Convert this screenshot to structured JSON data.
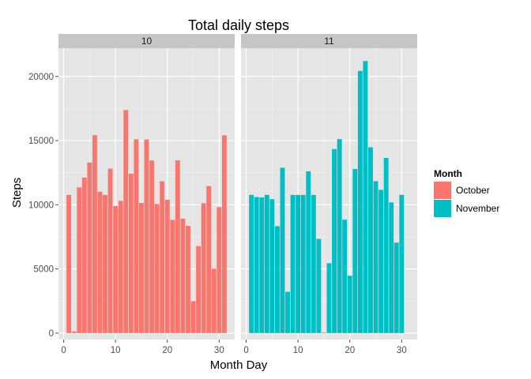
{
  "chart_data": {
    "type": "bar",
    "title": "Total daily steps",
    "xlabel": "Month Day",
    "ylabel": "Steps",
    "x_range": [
      -1,
      33
    ],
    "x_ticks": [
      0,
      10,
      20,
      30
    ],
    "y_range": [
      -500,
      22200
    ],
    "y_ticks": [
      0,
      5000,
      10000,
      15000,
      20000
    ],
    "grid": true,
    "legend": {
      "title": "Month",
      "position": "right",
      "items": [
        {
          "label": "October",
          "color": "#F8766D"
        },
        {
          "label": "November",
          "color": "#00BFC4"
        }
      ]
    },
    "facets": [
      {
        "strip_label": "10",
        "color": "#F8766D",
        "x": [
          1,
          2,
          3,
          4,
          5,
          6,
          7,
          8,
          9,
          10,
          11,
          12,
          13,
          14,
          15,
          16,
          17,
          18,
          19,
          20,
          21,
          22,
          23,
          24,
          25,
          26,
          27,
          28,
          29,
          30,
          31
        ],
        "values": [
          10766,
          126,
          11352,
          12116,
          13294,
          15420,
          11015,
          10766,
          12811,
          9900,
          10304,
          17382,
          12426,
          15098,
          10139,
          15084,
          13452,
          10056,
          11829,
          10395,
          8821,
          13460,
          8918,
          8355,
          2492,
          6778,
          10119,
          11458,
          5018,
          9819,
          15414
        ]
      },
      {
        "strip_label": "11",
        "color": "#00BFC4",
        "x": [
          1,
          2,
          3,
          4,
          5,
          6,
          7,
          8,
          9,
          10,
          11,
          12,
          13,
          14,
          15,
          16,
          17,
          18,
          19,
          20,
          21,
          22,
          23,
          24,
          25,
          26,
          27,
          28,
          29,
          30
        ],
        "values": [
          10766,
          10600,
          10571,
          10766,
          10439,
          8334,
          12883,
          3219,
          10766,
          10766,
          10765,
          12608,
          10766,
          7336,
          41,
          5441,
          14339,
          15110,
          8841,
          4472,
          12787,
          20427,
          21194,
          14478,
          11834,
          11162,
          13646,
          10183,
          7047,
          10766
        ]
      }
    ]
  }
}
